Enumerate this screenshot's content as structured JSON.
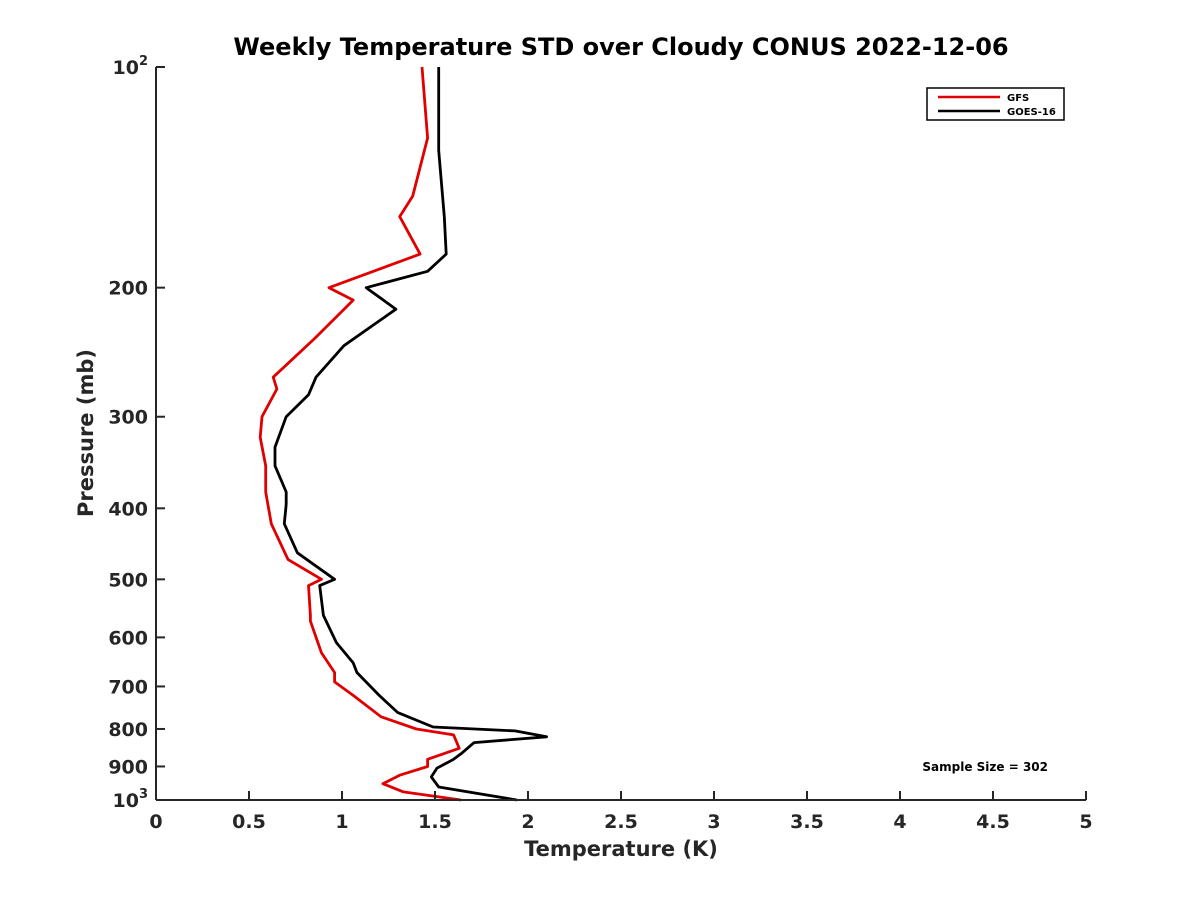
{
  "chart_data": {
    "type": "line",
    "title": "Weekly Temperature STD over Cloudy CONUS 2022-12-06",
    "xlabel": "Temperature (K)",
    "ylabel": "Pressure (mb)",
    "xlim": [
      0,
      5
    ],
    "ylim": [
      100,
      1000
    ],
    "y_scale": "log",
    "y_reversed": true,
    "x_ticks": [
      {
        "value": 0,
        "label": "0"
      },
      {
        "value": 0.5,
        "label": "0.5"
      },
      {
        "value": 1,
        "label": "1"
      },
      {
        "value": 1.5,
        "label": "1.5"
      },
      {
        "value": 2,
        "label": "2"
      },
      {
        "value": 2.5,
        "label": "2.5"
      },
      {
        "value": 3,
        "label": "3"
      },
      {
        "value": 3.5,
        "label": "3.5"
      },
      {
        "value": 4,
        "label": "4"
      },
      {
        "value": 4.5,
        "label": "4.5"
      },
      {
        "value": 5,
        "label": "5"
      }
    ],
    "y_ticks": [
      {
        "value": 100,
        "label": "10",
        "sup": "2"
      },
      {
        "value": 200,
        "label": "200",
        "sup": ""
      },
      {
        "value": 300,
        "label": "300",
        "sup": ""
      },
      {
        "value": 400,
        "label": "400",
        "sup": ""
      },
      {
        "value": 500,
        "label": "500",
        "sup": ""
      },
      {
        "value": 600,
        "label": "600",
        "sup": ""
      },
      {
        "value": 700,
        "label": "700",
        "sup": ""
      },
      {
        "value": 800,
        "label": "800",
        "sup": ""
      },
      {
        "value": 900,
        "label": "900",
        "sup": ""
      },
      {
        "value": 1000,
        "label": "10",
        "sup": "3"
      }
    ],
    "grid": false,
    "legend_position": "top-right",
    "series": [
      {
        "name": "GFS",
        "color": "#e00000",
        "points": [
          [
            1.43,
            100
          ],
          [
            1.46,
            125
          ],
          [
            1.38,
            150
          ],
          [
            1.31,
            160
          ],
          [
            1.42,
            180
          ],
          [
            0.93,
            200
          ],
          [
            1.06,
            208
          ],
          [
            0.85,
            235
          ],
          [
            0.63,
            265
          ],
          [
            0.65,
            275
          ],
          [
            0.57,
            300
          ],
          [
            0.56,
            320
          ],
          [
            0.59,
            350
          ],
          [
            0.59,
            380
          ],
          [
            0.62,
            420
          ],
          [
            0.71,
            470
          ],
          [
            0.89,
            500
          ],
          [
            0.82,
            510
          ],
          [
            0.83,
            560
          ],
          [
            0.83,
            570
          ],
          [
            0.89,
            630
          ],
          [
            0.96,
            670
          ],
          [
            0.96,
            690
          ],
          [
            1.06,
            720
          ],
          [
            1.21,
            770
          ],
          [
            1.4,
            800
          ],
          [
            1.6,
            815
          ],
          [
            1.63,
            850
          ],
          [
            1.46,
            880
          ],
          [
            1.46,
            900
          ],
          [
            1.31,
            925
          ],
          [
            1.22,
            950
          ],
          [
            1.33,
            975
          ],
          [
            1.64,
            1000
          ]
        ]
      },
      {
        "name": "GOES-16",
        "color": "#000000",
        "points": [
          [
            1.52,
            100
          ],
          [
            1.52,
            130
          ],
          [
            1.55,
            160
          ],
          [
            1.56,
            180
          ],
          [
            1.46,
            190
          ],
          [
            1.13,
            200
          ],
          [
            1.29,
            214
          ],
          [
            1.01,
            240
          ],
          [
            0.86,
            265
          ],
          [
            0.82,
            280
          ],
          [
            0.7,
            300
          ],
          [
            0.64,
            330
          ],
          [
            0.64,
            350
          ],
          [
            0.7,
            380
          ],
          [
            0.7,
            395
          ],
          [
            0.69,
            420
          ],
          [
            0.76,
            460
          ],
          [
            0.96,
            500
          ],
          [
            0.88,
            510
          ],
          [
            0.9,
            560
          ],
          [
            0.97,
            610
          ],
          [
            1.06,
            650
          ],
          [
            1.08,
            670
          ],
          [
            1.2,
            720
          ],
          [
            1.3,
            760
          ],
          [
            1.49,
            795
          ],
          [
            1.93,
            805
          ],
          [
            2.1,
            820
          ],
          [
            1.71,
            835
          ],
          [
            1.64,
            865
          ],
          [
            1.6,
            880
          ],
          [
            1.51,
            905
          ],
          [
            1.48,
            930
          ],
          [
            1.52,
            960
          ],
          [
            1.94,
            1000
          ]
        ]
      }
    ],
    "annotations": [
      {
        "text": "Sample Size = 302",
        "position": "bottom-right"
      }
    ]
  }
}
